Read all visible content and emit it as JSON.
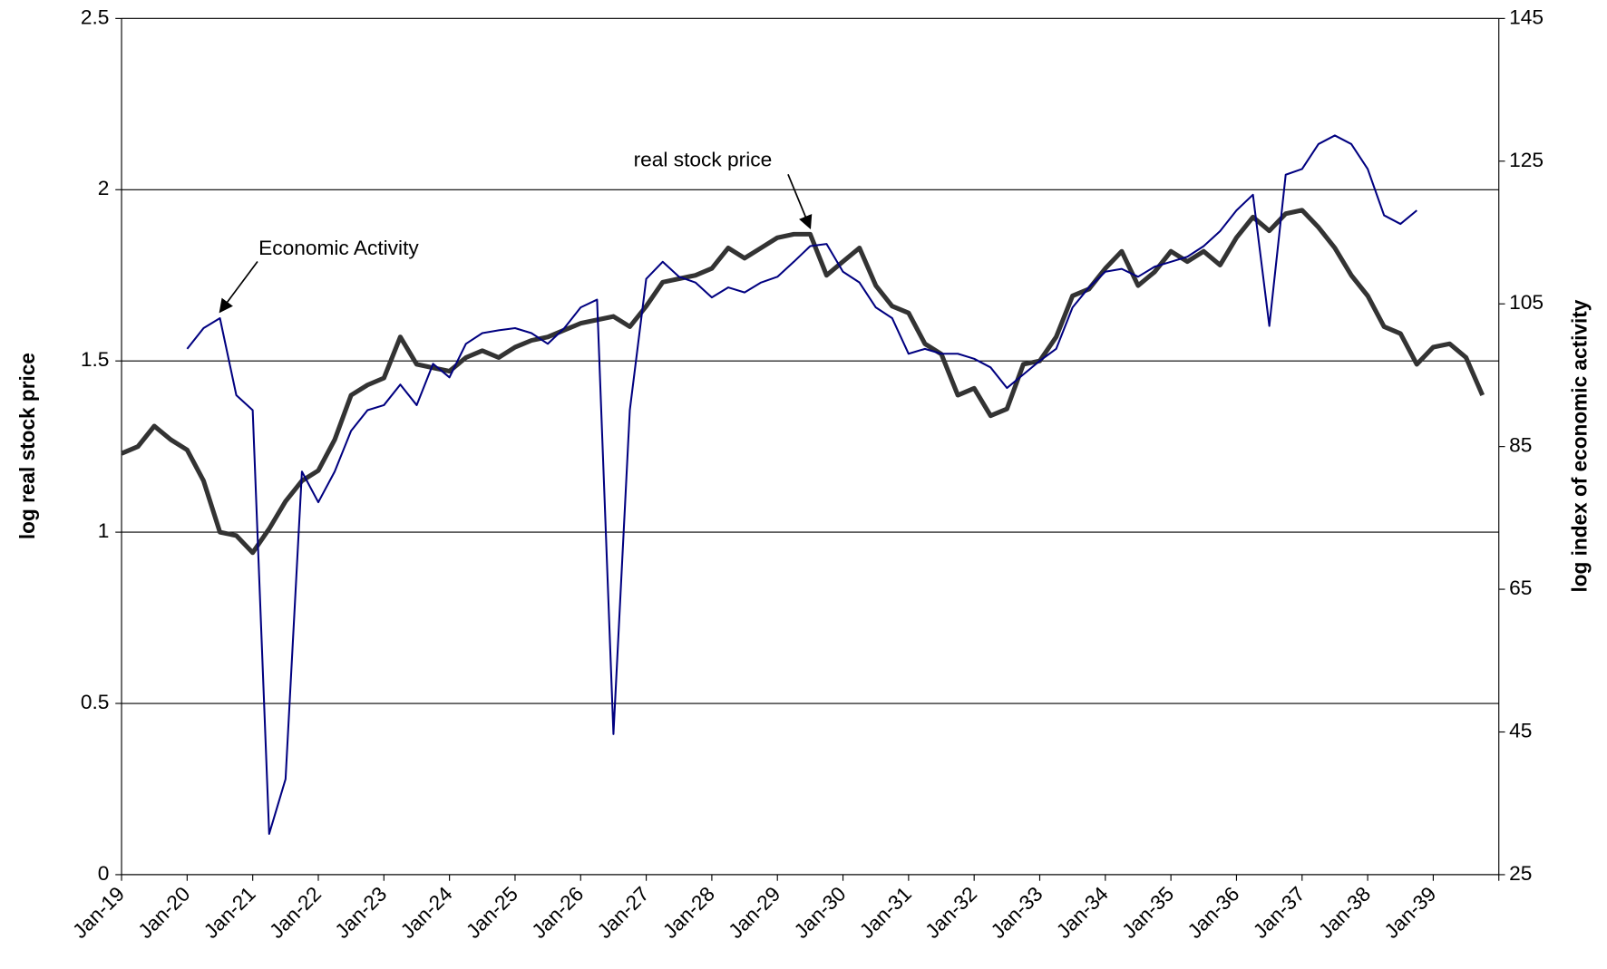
{
  "chart_data": {
    "type": "line",
    "y_label": "log real stock price",
    "y2_label": "log index of economic activity",
    "categories": [
      "Jan-19",
      null,
      null,
      null,
      "Jan-20",
      null,
      null,
      null,
      "Jan-21",
      null,
      null,
      null,
      "Jan-22",
      null,
      null,
      null,
      "Jan-23",
      null,
      null,
      null,
      "Jan-24",
      null,
      null,
      null,
      "Jan-25",
      null,
      null,
      null,
      "Jan-26",
      null,
      null,
      null,
      "Jan-27",
      null,
      null,
      null,
      "Jan-28",
      null,
      null,
      null,
      "Jan-29",
      null,
      null,
      null,
      "Jan-30",
      null,
      null,
      null,
      "Jan-31",
      null,
      null,
      null,
      "Jan-32",
      null,
      null,
      null,
      "Jan-33",
      null,
      null,
      null,
      "Jan-34",
      null,
      null,
      null,
      "Jan-35",
      null,
      null,
      null,
      "Jan-36",
      null,
      null,
      null,
      "Jan-37",
      null,
      null,
      null,
      "Jan-38",
      null,
      null,
      null,
      "Jan-39",
      null,
      null,
      null
    ],
    "series": [
      {
        "name": "real stock price",
        "color": "#333333",
        "values": [
          1.23,
          1.25,
          1.31,
          1.27,
          1.24,
          1.15,
          1.0,
          0.99,
          0.94,
          1.01,
          1.09,
          1.15,
          1.18,
          1.27,
          1.4,
          1.43,
          1.45,
          1.57,
          1.49,
          1.48,
          1.47,
          1.51,
          1.53,
          1.51,
          1.54,
          1.56,
          1.57,
          1.59,
          1.61,
          1.62,
          1.63,
          1.6,
          1.66,
          1.73,
          1.74,
          1.75,
          1.77,
          1.83,
          1.8,
          1.83,
          1.86,
          1.87,
          1.87,
          1.75,
          1.79,
          1.83,
          1.72,
          1.66,
          1.64,
          1.55,
          1.52,
          1.4,
          1.42,
          1.34,
          1.36,
          1.49,
          1.5,
          1.57,
          1.69,
          1.71,
          1.77,
          1.82,
          1.72,
          1.76,
          1.82,
          1.79,
          1.82,
          1.78,
          1.86,
          1.92,
          1.88,
          1.93,
          1.94,
          1.89,
          1.83,
          1.75,
          1.69,
          1.6,
          1.58,
          1.49,
          1.54,
          1.55,
          1.51,
          1.4
        ]
      },
      {
        "name": "Economic Activity",
        "color": "#000080",
        "axis": "y2",
        "values": [
          null,
          null,
          null,
          null,
          98.7,
          101.6,
          103.0,
          92.2,
          90.1,
          30.7,
          38.4,
          81.5,
          77.2,
          81.5,
          87.2,
          90.1,
          90.8,
          93.7,
          90.8,
          96.6,
          94.7,
          99.4,
          100.9,
          101.3,
          101.6,
          100.9,
          99.4,
          101.6,
          104.5,
          105.6,
          44.7,
          90.1,
          108.5,
          110.9,
          108.8,
          108.0,
          105.9,
          107.3,
          106.6,
          108.0,
          108.8,
          110.9,
          113.1,
          113.4,
          109.5,
          108.0,
          104.5,
          103.0,
          98.0,
          98.7,
          98.0,
          98.0,
          97.3,
          96.1,
          93.2,
          95.1,
          97.0,
          98.7,
          104.5,
          107.3,
          109.5,
          109.9,
          108.8,
          110.2,
          110.9,
          111.6,
          113.1,
          115.2,
          118.1,
          120.3,
          101.9,
          123.1,
          123.9,
          127.4,
          128.6,
          127.4,
          123.9,
          117.4,
          116.2,
          118.1,
          null,
          null,
          null,
          null
        ]
      }
    ],
    "ylim": [
      0,
      2.5
    ],
    "yticks": [
      0,
      0.5,
      1,
      1.5,
      2,
      2.5
    ],
    "y2lim": [
      25,
      145
    ],
    "y2ticks": [
      25,
      45,
      65,
      85,
      105,
      125,
      145
    ],
    "grid": true
  }
}
